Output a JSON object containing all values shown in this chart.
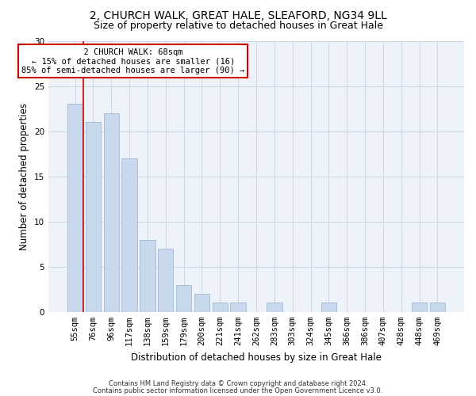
{
  "title1": "2, CHURCH WALK, GREAT HALE, SLEAFORD, NG34 9LL",
  "title2": "Size of property relative to detached houses in Great Hale",
  "xlabel": "Distribution of detached houses by size in Great Hale",
  "ylabel": "Number of detached properties",
  "categories": [
    "55sqm",
    "76sqm",
    "96sqm",
    "117sqm",
    "138sqm",
    "159sqm",
    "179sqm",
    "200sqm",
    "221sqm",
    "241sqm",
    "262sqm",
    "283sqm",
    "303sqm",
    "324sqm",
    "345sqm",
    "366sqm",
    "386sqm",
    "407sqm",
    "428sqm",
    "448sqm",
    "469sqm"
  ],
  "values": [
    23,
    21,
    22,
    17,
    8,
    7,
    3,
    2,
    1,
    1,
    0,
    1,
    0,
    0,
    1,
    0,
    0,
    0,
    0,
    1,
    1
  ],
  "bar_color": "#c8d9ee",
  "bar_edge_color": "#aabdd8",
  "annotation_text": "  2 CHURCH WALK: 68sqm  \n← 15% of detached houses are smaller (16)\n85% of semi-detached houses are larger (90) →",
  "annotation_box_color": "#ffffff",
  "annotation_box_edge_color": "#cc0000",
  "footer1": "Contains HM Land Registry data © Crown copyright and database right 2024.",
  "footer2": "Contains public sector information licensed under the Open Government Licence v3.0.",
  "ylim": [
    0,
    30
  ],
  "yticks": [
    0,
    5,
    10,
    15,
    20,
    25,
    30
  ],
  "grid_color": "#d0d8e8",
  "bg_color": "#eef2f9",
  "title1_fontsize": 10,
  "title2_fontsize": 9,
  "tick_fontsize": 7.5,
  "ylabel_fontsize": 8.5,
  "xlabel_fontsize": 8.5,
  "footer_fontsize": 6
}
